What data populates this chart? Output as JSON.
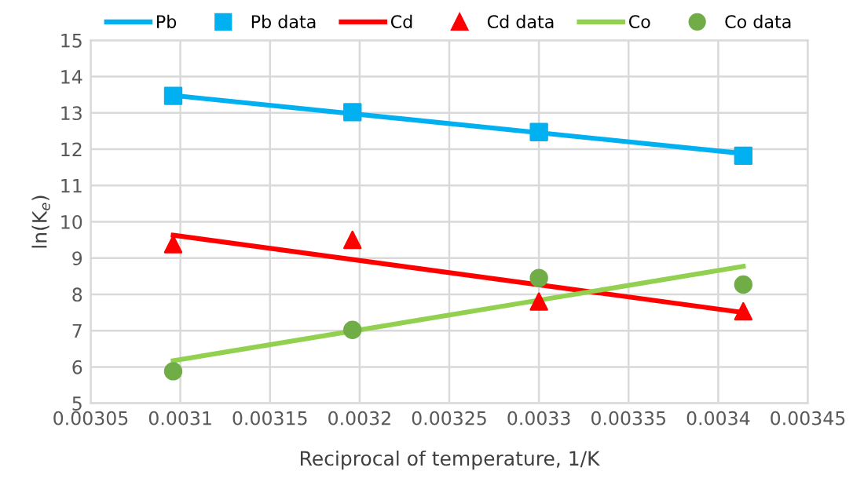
{
  "chart_data": {
    "type": "scatter",
    "xlabel": "Reciprocal of temperature, 1/K",
    "ylabel": "ln(K$_{e}$)",
    "xlim": [
      0.00305,
      0.00345
    ],
    "xticks": [
      0.00305,
      0.0031,
      0.00315,
      0.0032,
      0.00325,
      0.0033,
      0.00335,
      0.0034,
      0.00345
    ],
    "ylim": [
      5,
      15
    ],
    "yticks": [
      5,
      6,
      7,
      8,
      9,
      10,
      11,
      12,
      13,
      14,
      15
    ],
    "grid": true,
    "legend": "top",
    "series": [
      {
        "name": "Pb",
        "type": "line",
        "color": "#00b0f0",
        "x": [
          0.003096,
          0.003414
        ],
        "values": [
          13.48,
          11.88
        ],
        "marker": "none"
      },
      {
        "name": "Pb data",
        "color": "#00b0f0",
        "x": [
          0.003096,
          0.003196,
          0.0033,
          0.003414
        ],
        "values": [
          13.47,
          13.02,
          12.47,
          11.82
        ],
        "marker": "square"
      },
      {
        "name": "Cd",
        "type": "line",
        "color": "#ff0000",
        "x": [
          0.003096,
          0.003414
        ],
        "values": [
          9.63,
          7.5
        ],
        "marker": "none"
      },
      {
        "name": "Cd data",
        "color": "#ff0000",
        "x": [
          0.003096,
          0.003196,
          0.0033,
          0.003414
        ],
        "values": [
          9.38,
          9.5,
          7.8,
          7.53
        ],
        "marker": "triangle"
      },
      {
        "name": "Co",
        "type": "line",
        "color": "#92d050",
        "x": [
          0.003096,
          0.003414
        ],
        "values": [
          6.17,
          8.77
        ],
        "marker": "none"
      },
      {
        "name": "Co data",
        "color": "#70ad47",
        "x": [
          0.003096,
          0.003196,
          0.0033,
          0.003414
        ],
        "values": [
          5.88,
          7.02,
          8.45,
          8.27
        ],
        "marker": "circle"
      }
    ]
  }
}
